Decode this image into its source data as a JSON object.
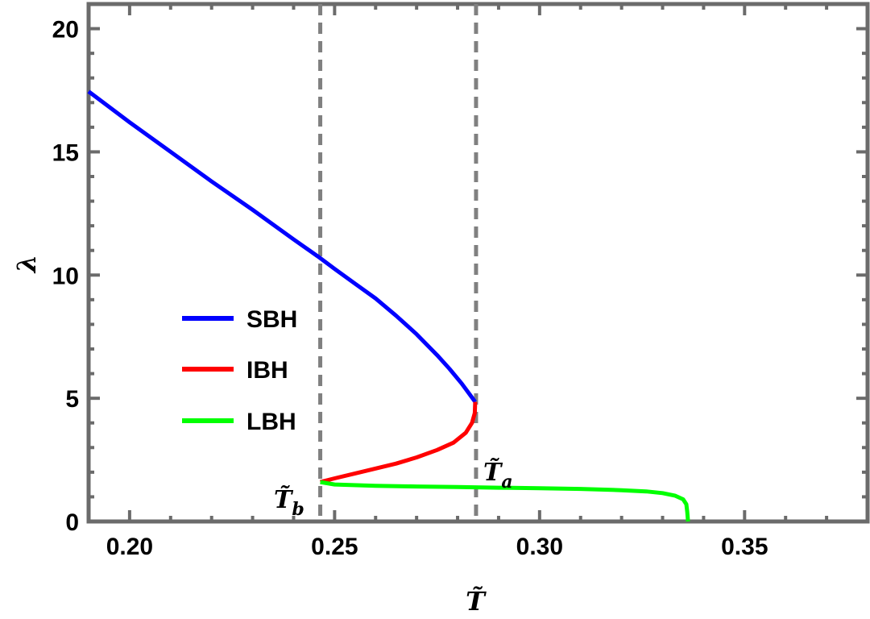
{
  "chart_data": {
    "type": "line",
    "xlabel": "T̃",
    "ylabel": "λ",
    "xlim": [
      0.19,
      0.38
    ],
    "ylim": [
      0,
      21
    ],
    "xticks": [
      0.2,
      0.25,
      0.3,
      0.35
    ],
    "xtick_labels": [
      "0.20",
      "0.25",
      "0.30",
      "0.35"
    ],
    "yticks": [
      0,
      5,
      10,
      15,
      20
    ],
    "ytick_labels": [
      "0",
      "5",
      "10",
      "15",
      "20"
    ],
    "grid": false,
    "legend_position": "left-middle",
    "series": [
      {
        "name": "SBH",
        "color": "#0000ff",
        "points": [
          [
            0.19,
            17.45
          ],
          [
            0.2,
            16.2
          ],
          [
            0.21,
            15.0
          ],
          [
            0.22,
            13.8
          ],
          [
            0.23,
            12.65
          ],
          [
            0.24,
            11.45
          ],
          [
            0.246,
            10.75
          ],
          [
            0.25,
            10.25
          ],
          [
            0.255,
            9.65
          ],
          [
            0.26,
            9.05
          ],
          [
            0.265,
            8.35
          ],
          [
            0.27,
            7.6
          ],
          [
            0.275,
            6.75
          ],
          [
            0.278,
            6.2
          ],
          [
            0.281,
            5.6
          ],
          [
            0.283,
            5.15
          ],
          [
            0.2843,
            4.85
          ]
        ]
      },
      {
        "name": "IBH",
        "color": "#ff0000",
        "points": [
          [
            0.2843,
            4.85
          ],
          [
            0.2842,
            4.4
          ],
          [
            0.2835,
            4.0
          ],
          [
            0.282,
            3.6
          ],
          [
            0.279,
            3.2
          ],
          [
            0.275,
            2.9
          ],
          [
            0.27,
            2.6
          ],
          [
            0.265,
            2.35
          ],
          [
            0.26,
            2.15
          ],
          [
            0.255,
            1.95
          ],
          [
            0.25,
            1.75
          ],
          [
            0.2465,
            1.6
          ]
        ]
      },
      {
        "name": "LBH",
        "color": "#00ff00",
        "points": [
          [
            0.2465,
            1.6
          ],
          [
            0.25,
            1.5
          ],
          [
            0.26,
            1.45
          ],
          [
            0.27,
            1.42
          ],
          [
            0.28,
            1.4
          ],
          [
            0.29,
            1.37
          ],
          [
            0.3,
            1.35
          ],
          [
            0.31,
            1.32
          ],
          [
            0.32,
            1.27
          ],
          [
            0.326,
            1.22
          ],
          [
            0.33,
            1.15
          ],
          [
            0.333,
            1.05
          ],
          [
            0.335,
            0.9
          ],
          [
            0.3358,
            0.7
          ],
          [
            0.336,
            0.4
          ],
          [
            0.3362,
            0.0
          ]
        ]
      }
    ],
    "vlines": [
      {
        "x": 0.2465,
        "style": "dashed",
        "color": "#808080"
      },
      {
        "x": 0.2845,
        "style": "dashed",
        "color": "#808080"
      }
    ],
    "annotations": [
      {
        "base": "T̃",
        "sub": "b",
        "x": 0.2465,
        "y": 1.6
      },
      {
        "base": "T̃",
        "sub": "a",
        "x": 0.2845,
        "y": 1.4
      }
    ]
  }
}
